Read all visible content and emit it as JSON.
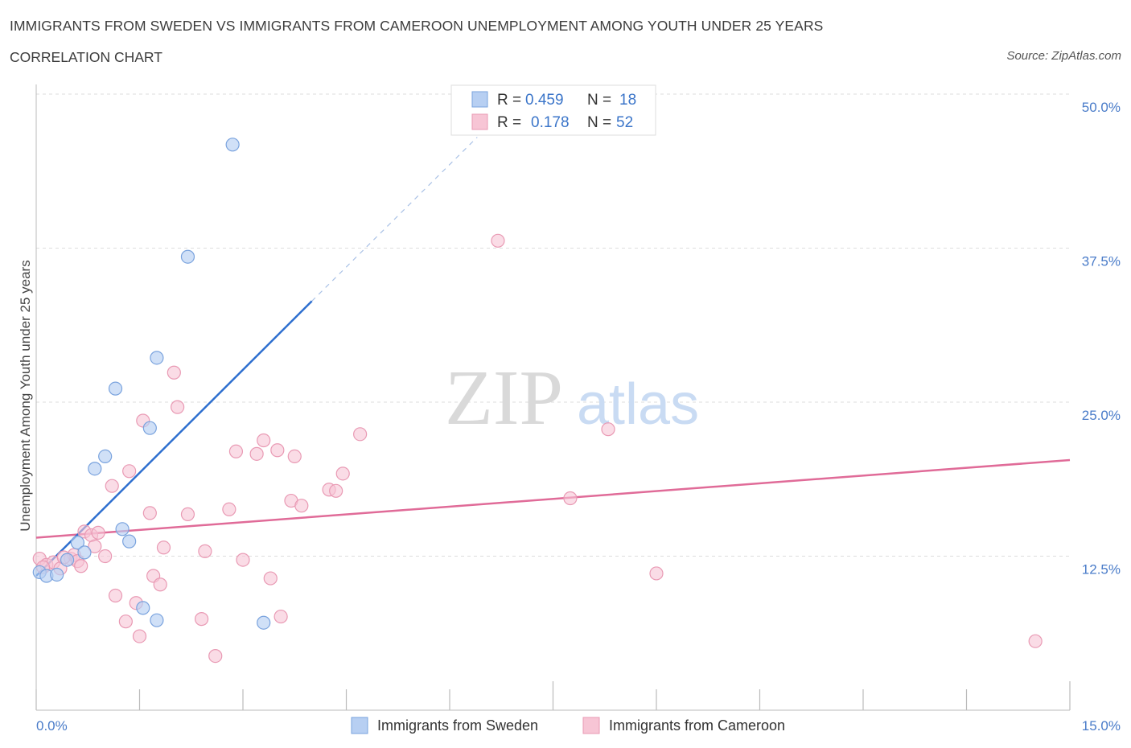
{
  "header": {
    "title": "IMMIGRANTS FROM SWEDEN VS IMMIGRANTS FROM CAMEROON UNEMPLOYMENT AMONG YOUTH UNDER 25 YEARS",
    "subtitle": "CORRELATION CHART",
    "source": "Source: ZipAtlas.com"
  },
  "watermark": {
    "zip": "ZIP",
    "atlas": "atlas"
  },
  "legend": {
    "rows": [
      {
        "r_label": "R =",
        "r_value": "0.459",
        "n_label": "N =",
        "n_value": "18"
      },
      {
        "r_label": "R =",
        "r_value": "0.178",
        "n_label": "N =",
        "n_value": "52"
      }
    ]
  },
  "colors": {
    "sweden_fill": "#b7cff2",
    "sweden_stroke": "#7aa3de",
    "sweden_line": "#2e6fcf",
    "cameroon_fill": "#f7c5d5",
    "cameroon_stroke": "#e99ab4",
    "cameroon_line": "#e06b98",
    "tick_label": "#4a7cc9",
    "grid": "#dddddd"
  },
  "chart_data": {
    "type": "scatter",
    "title": "IMMIGRANTS FROM SWEDEN VS IMMIGRANTS FROM CAMEROON UNEMPLOYMENT AMONG YOUTH UNDER 25 YEARS",
    "subtitle": "CORRELATION CHART",
    "xlabel": "",
    "ylabel": "Unemployment Among Youth under 25 years",
    "xlim": [
      0,
      15
    ],
    "ylim": [
      0,
      50
    ],
    "x_tick_labels": [
      "0.0%",
      "15.0%"
    ],
    "y_tick_labels": [
      "12.5%",
      "25.0%",
      "37.5%",
      "50.0%"
    ],
    "y_ticks": [
      12.5,
      25,
      37.5,
      50
    ],
    "grid": true,
    "legend_position": "bottom",
    "series": [
      {
        "name": "Immigrants from Sweden",
        "color": "#7aa3de",
        "r": 0.459,
        "n": 18,
        "points": [
          [
            0.05,
            11.2
          ],
          [
            0.15,
            10.9
          ],
          [
            0.3,
            11.0
          ],
          [
            0.45,
            12.2
          ],
          [
            0.6,
            13.6
          ],
          [
            0.7,
            12.8
          ],
          [
            0.85,
            19.6
          ],
          [
            1.0,
            20.6
          ],
          [
            1.15,
            26.1
          ],
          [
            1.25,
            14.7
          ],
          [
            1.35,
            13.7
          ],
          [
            1.55,
            8.3
          ],
          [
            1.65,
            22.9
          ],
          [
            1.75,
            7.3
          ],
          [
            1.75,
            28.6
          ],
          [
            2.2,
            36.8
          ],
          [
            2.85,
            45.9
          ],
          [
            3.3,
            7.1
          ]
        ],
        "trend": {
          "x0": 0.0,
          "y0": 10.9,
          "x1": 4.0,
          "y1": 33.2,
          "dash_x1": 6.4,
          "dash_y1": 46.5
        }
      },
      {
        "name": "Immigrants from Cameroon",
        "color": "#e99ab4",
        "r": 0.178,
        "n": 52,
        "points": [
          [
            0.05,
            12.3
          ],
          [
            0.15,
            11.8
          ],
          [
            0.25,
            12.0
          ],
          [
            0.35,
            11.5
          ],
          [
            0.5,
            12.3
          ],
          [
            0.55,
            12.6
          ],
          [
            0.6,
            12.1
          ],
          [
            0.65,
            11.7
          ],
          [
            0.7,
            14.5
          ],
          [
            0.8,
            14.2
          ],
          [
            0.85,
            13.3
          ],
          [
            0.9,
            14.4
          ],
          [
            1.0,
            12.5
          ],
          [
            1.1,
            18.2
          ],
          [
            1.15,
            9.3
          ],
          [
            1.3,
            7.2
          ],
          [
            1.35,
            19.4
          ],
          [
            1.45,
            8.7
          ],
          [
            1.5,
            6.0
          ],
          [
            1.55,
            23.5
          ],
          [
            1.65,
            16.0
          ],
          [
            1.7,
            10.9
          ],
          [
            1.8,
            10.2
          ],
          [
            1.85,
            13.2
          ],
          [
            2.0,
            27.4
          ],
          [
            2.05,
            24.6
          ],
          [
            2.2,
            15.9
          ],
          [
            2.4,
            7.4
          ],
          [
            2.45,
            12.9
          ],
          [
            2.6,
            4.4
          ],
          [
            2.8,
            16.3
          ],
          [
            2.9,
            21.0
          ],
          [
            3.0,
            12.2
          ],
          [
            3.2,
            20.8
          ],
          [
            3.3,
            21.9
          ],
          [
            3.4,
            10.7
          ],
          [
            3.5,
            21.1
          ],
          [
            3.55,
            7.6
          ],
          [
            3.7,
            17.0
          ],
          [
            3.75,
            20.6
          ],
          [
            3.85,
            16.6
          ],
          [
            4.25,
            17.9
          ],
          [
            4.35,
            17.8
          ],
          [
            4.45,
            19.2
          ],
          [
            4.7,
            22.4
          ],
          [
            6.7,
            38.1
          ],
          [
            7.75,
            17.2
          ],
          [
            8.3,
            22.8
          ],
          [
            9.0,
            11.1
          ],
          [
            14.5,
            5.6
          ],
          [
            0.1,
            11.6
          ],
          [
            0.4,
            12.4
          ]
        ],
        "trend": {
          "x0": 0.0,
          "y0": 14.0,
          "x1": 15.0,
          "y1": 20.3
        }
      }
    ]
  },
  "bottom_legend": {
    "items": [
      {
        "label": "Immigrants from Sweden"
      },
      {
        "label": "Immigrants from Cameroon"
      }
    ]
  }
}
